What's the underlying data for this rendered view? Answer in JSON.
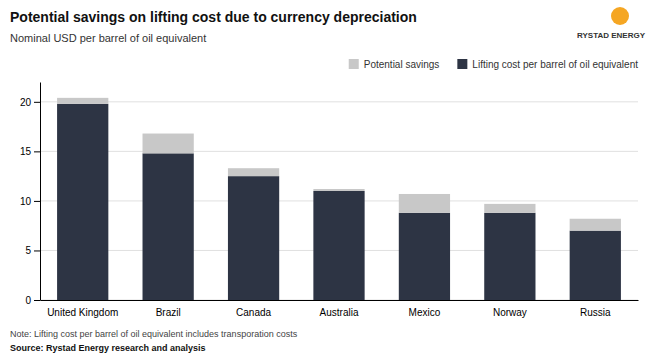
{
  "chart_data": {
    "type": "bar",
    "title": "Potential savings on lifting cost due to currency depreciation",
    "subtitle": "Nominal USD per barrel of oil equivalent",
    "categories": [
      "United Kingdom",
      "Brazil",
      "Canada",
      "Australia",
      "Mexico",
      "Norway",
      "Russia"
    ],
    "series": [
      {
        "name": "Lifting cost per barrel of oil equivalent",
        "color": "#2d3444",
        "values": [
          19.8,
          14.8,
          12.5,
          11.0,
          8.8,
          8.8,
          7.0
        ]
      },
      {
        "name": "Potential savings",
        "color": "#c8c8c8",
        "values": [
          0.6,
          2.0,
          0.8,
          0.2,
          1.9,
          0.9,
          1.2
        ]
      }
    ],
    "stacked": true,
    "ylim": [
      0,
      22
    ],
    "yticks": [
      0,
      5,
      10,
      15,
      20
    ],
    "grid": true,
    "legend": "upper right",
    "note": "Note: Lifting cost per barrel of oil equivalent includes transporation costs",
    "source": "Source: Rystad Energy research and analysis",
    "annotations": [
      "RYSTAD ENERGY"
    ]
  }
}
